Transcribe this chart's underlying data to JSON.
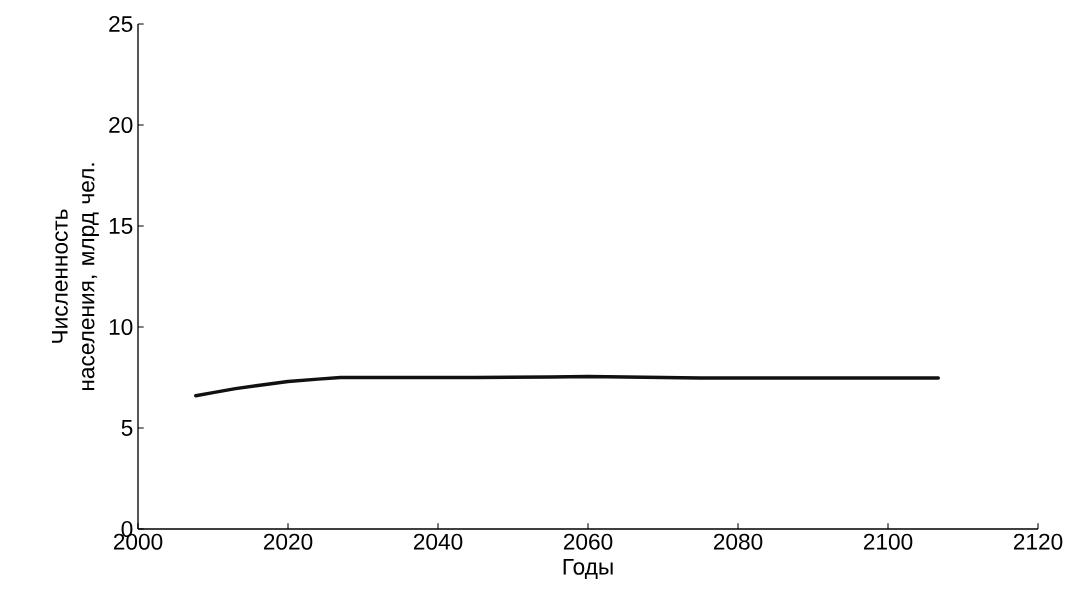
{
  "chart_data": {
    "type": "line",
    "xlabel": "Годы",
    "ylabel": "Численность населения, млрд чел.",
    "x": [
      2007.7,
      2010,
      2013,
      2016,
      2020,
      2024,
      2027,
      2035,
      2045,
      2055,
      2060,
      2065,
      2075,
      2085,
      2095,
      2106.7
    ],
    "series": [
      {
        "color": "#111111",
        "values": [
          6.6,
          6.75,
          6.95,
          7.1,
          7.3,
          7.42,
          7.5,
          7.5,
          7.5,
          7.52,
          7.55,
          7.52,
          7.48,
          7.48,
          7.48,
          7.48
        ]
      }
    ],
    "xlim": [
      2000,
      2120
    ],
    "xticks": [
      2000,
      2020,
      2040,
      2060,
      2080,
      2100,
      2120
    ],
    "ylim": [
      0,
      25
    ],
    "yticks": [
      0,
      5,
      10,
      15,
      20,
      25
    ],
    "marker": "none",
    "line_style": "solid"
  }
}
